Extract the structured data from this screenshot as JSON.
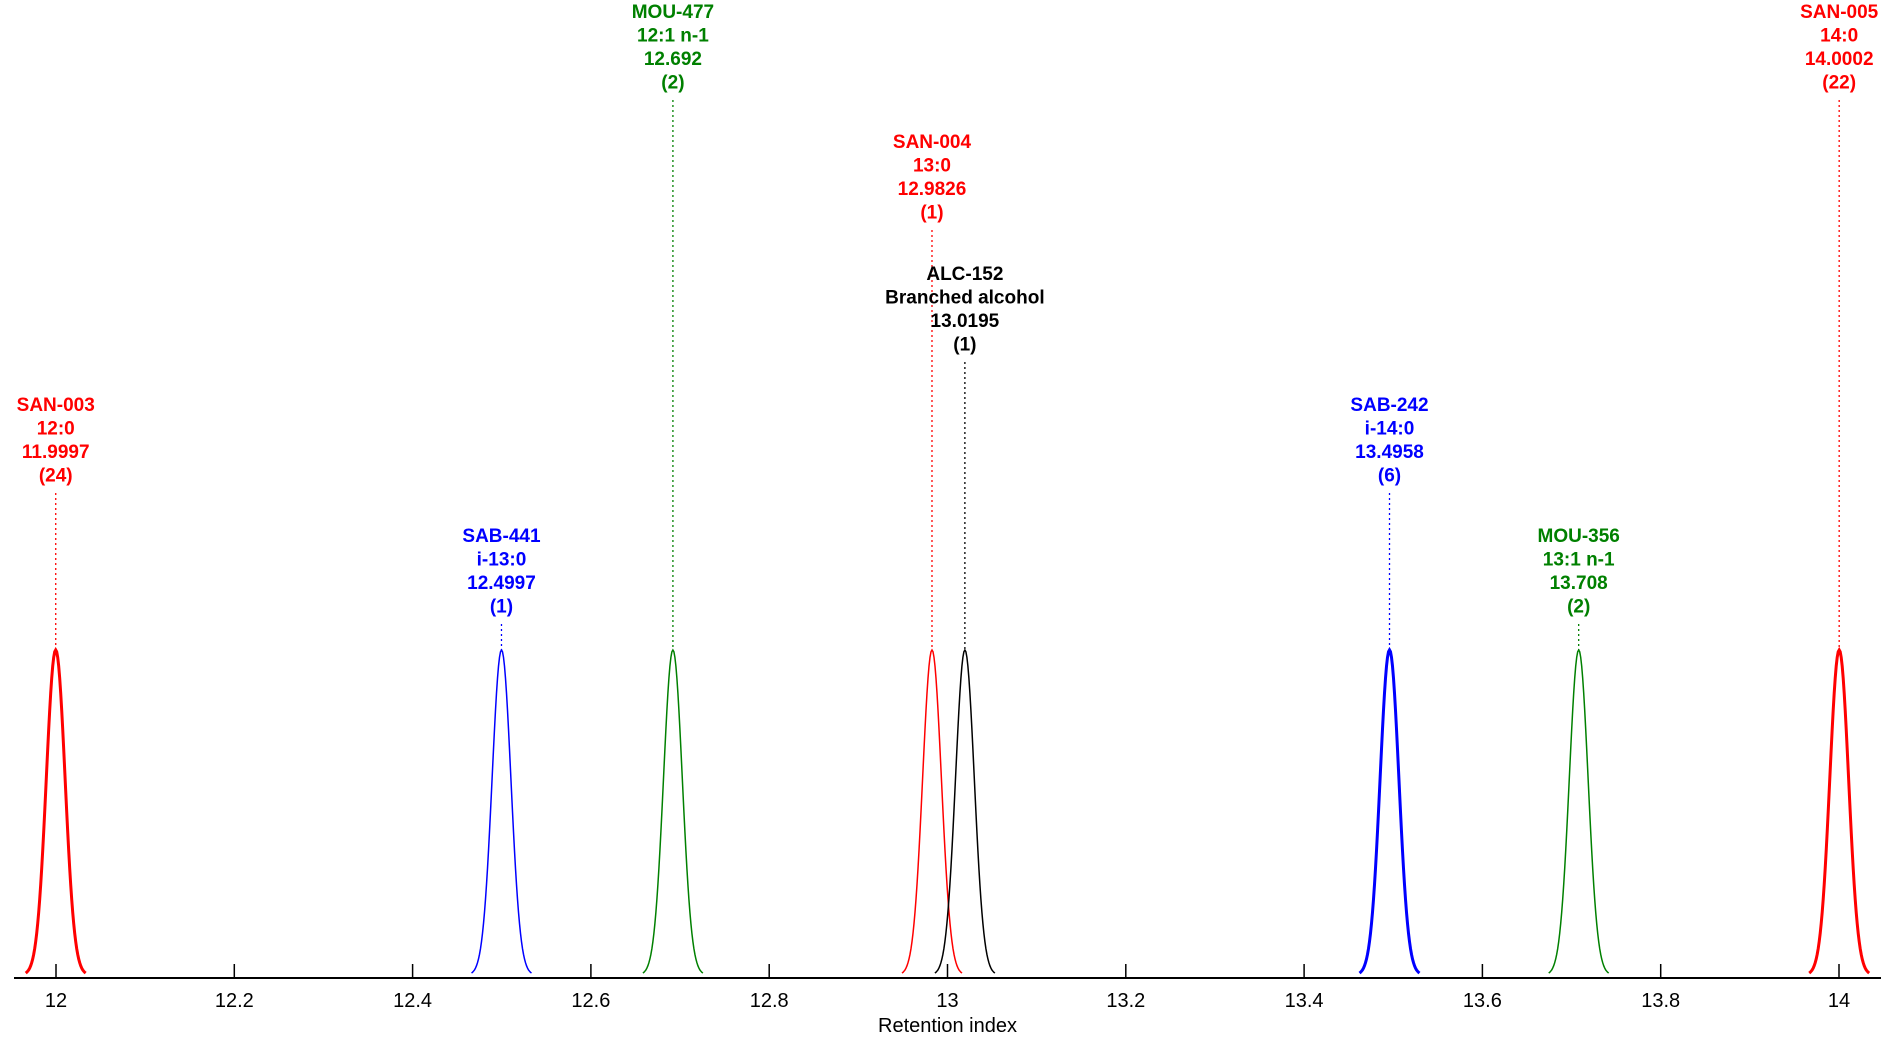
{
  "chart_data": {
    "type": "line",
    "xlabel": "Retention index",
    "ylabel": "",
    "title": "",
    "xlim": [
      11.95,
      14.05
    ],
    "x_ticks": [
      "12",
      "12.2",
      "12.4",
      "12.6",
      "12.8",
      "13",
      "13.2",
      "13.4",
      "13.6",
      "13.8",
      "14"
    ],
    "grid": false,
    "peaks": [
      {
        "id": "SAN-003",
        "label": "12:0",
        "value_text": "11.9997",
        "count": "(24)",
        "x": 11.9997,
        "color": "#ff0000",
        "bold": true,
        "label_row": 3
      },
      {
        "id": "SAB-441",
        "label": "i-13:0",
        "value_text": "12.4997",
        "count": "(1)",
        "x": 12.4997,
        "color": "#0000ff",
        "bold": false,
        "label_row": 4
      },
      {
        "id": "MOU-477",
        "label": "12:1 n-1",
        "value_text": "12.692",
        "count": "(2)",
        "x": 12.692,
        "color": "#008000",
        "bold": false,
        "label_row": 0
      },
      {
        "id": "SAN-004",
        "label": "13:0",
        "value_text": "12.9826",
        "count": "(1)",
        "x": 12.9826,
        "color": "#ff0000",
        "bold": false,
        "label_row": 1
      },
      {
        "id": "ALC-152",
        "label": "Branched alcohol",
        "value_text": "13.0195",
        "count": "(1)",
        "x": 13.0195,
        "color": "#000000",
        "bold": false,
        "label_row": 2
      },
      {
        "id": "SAB-242",
        "label": "i-14:0",
        "value_text": "13.4958",
        "count": "(6)",
        "x": 13.4958,
        "color": "#0000ff",
        "bold": true,
        "label_row": 3
      },
      {
        "id": "MOU-356",
        "label": "13:1 n-1",
        "value_text": "13.708",
        "count": "(2)",
        "x": 13.708,
        "color": "#008000",
        "bold": false,
        "label_row": 4
      },
      {
        "id": "SAN-005",
        "label": "14:0",
        "value_text": "14.0002",
        "count": "(22)",
        "x": 14.0002,
        "color": "#ff0000",
        "bold": true,
        "label_row": 0
      }
    ]
  }
}
